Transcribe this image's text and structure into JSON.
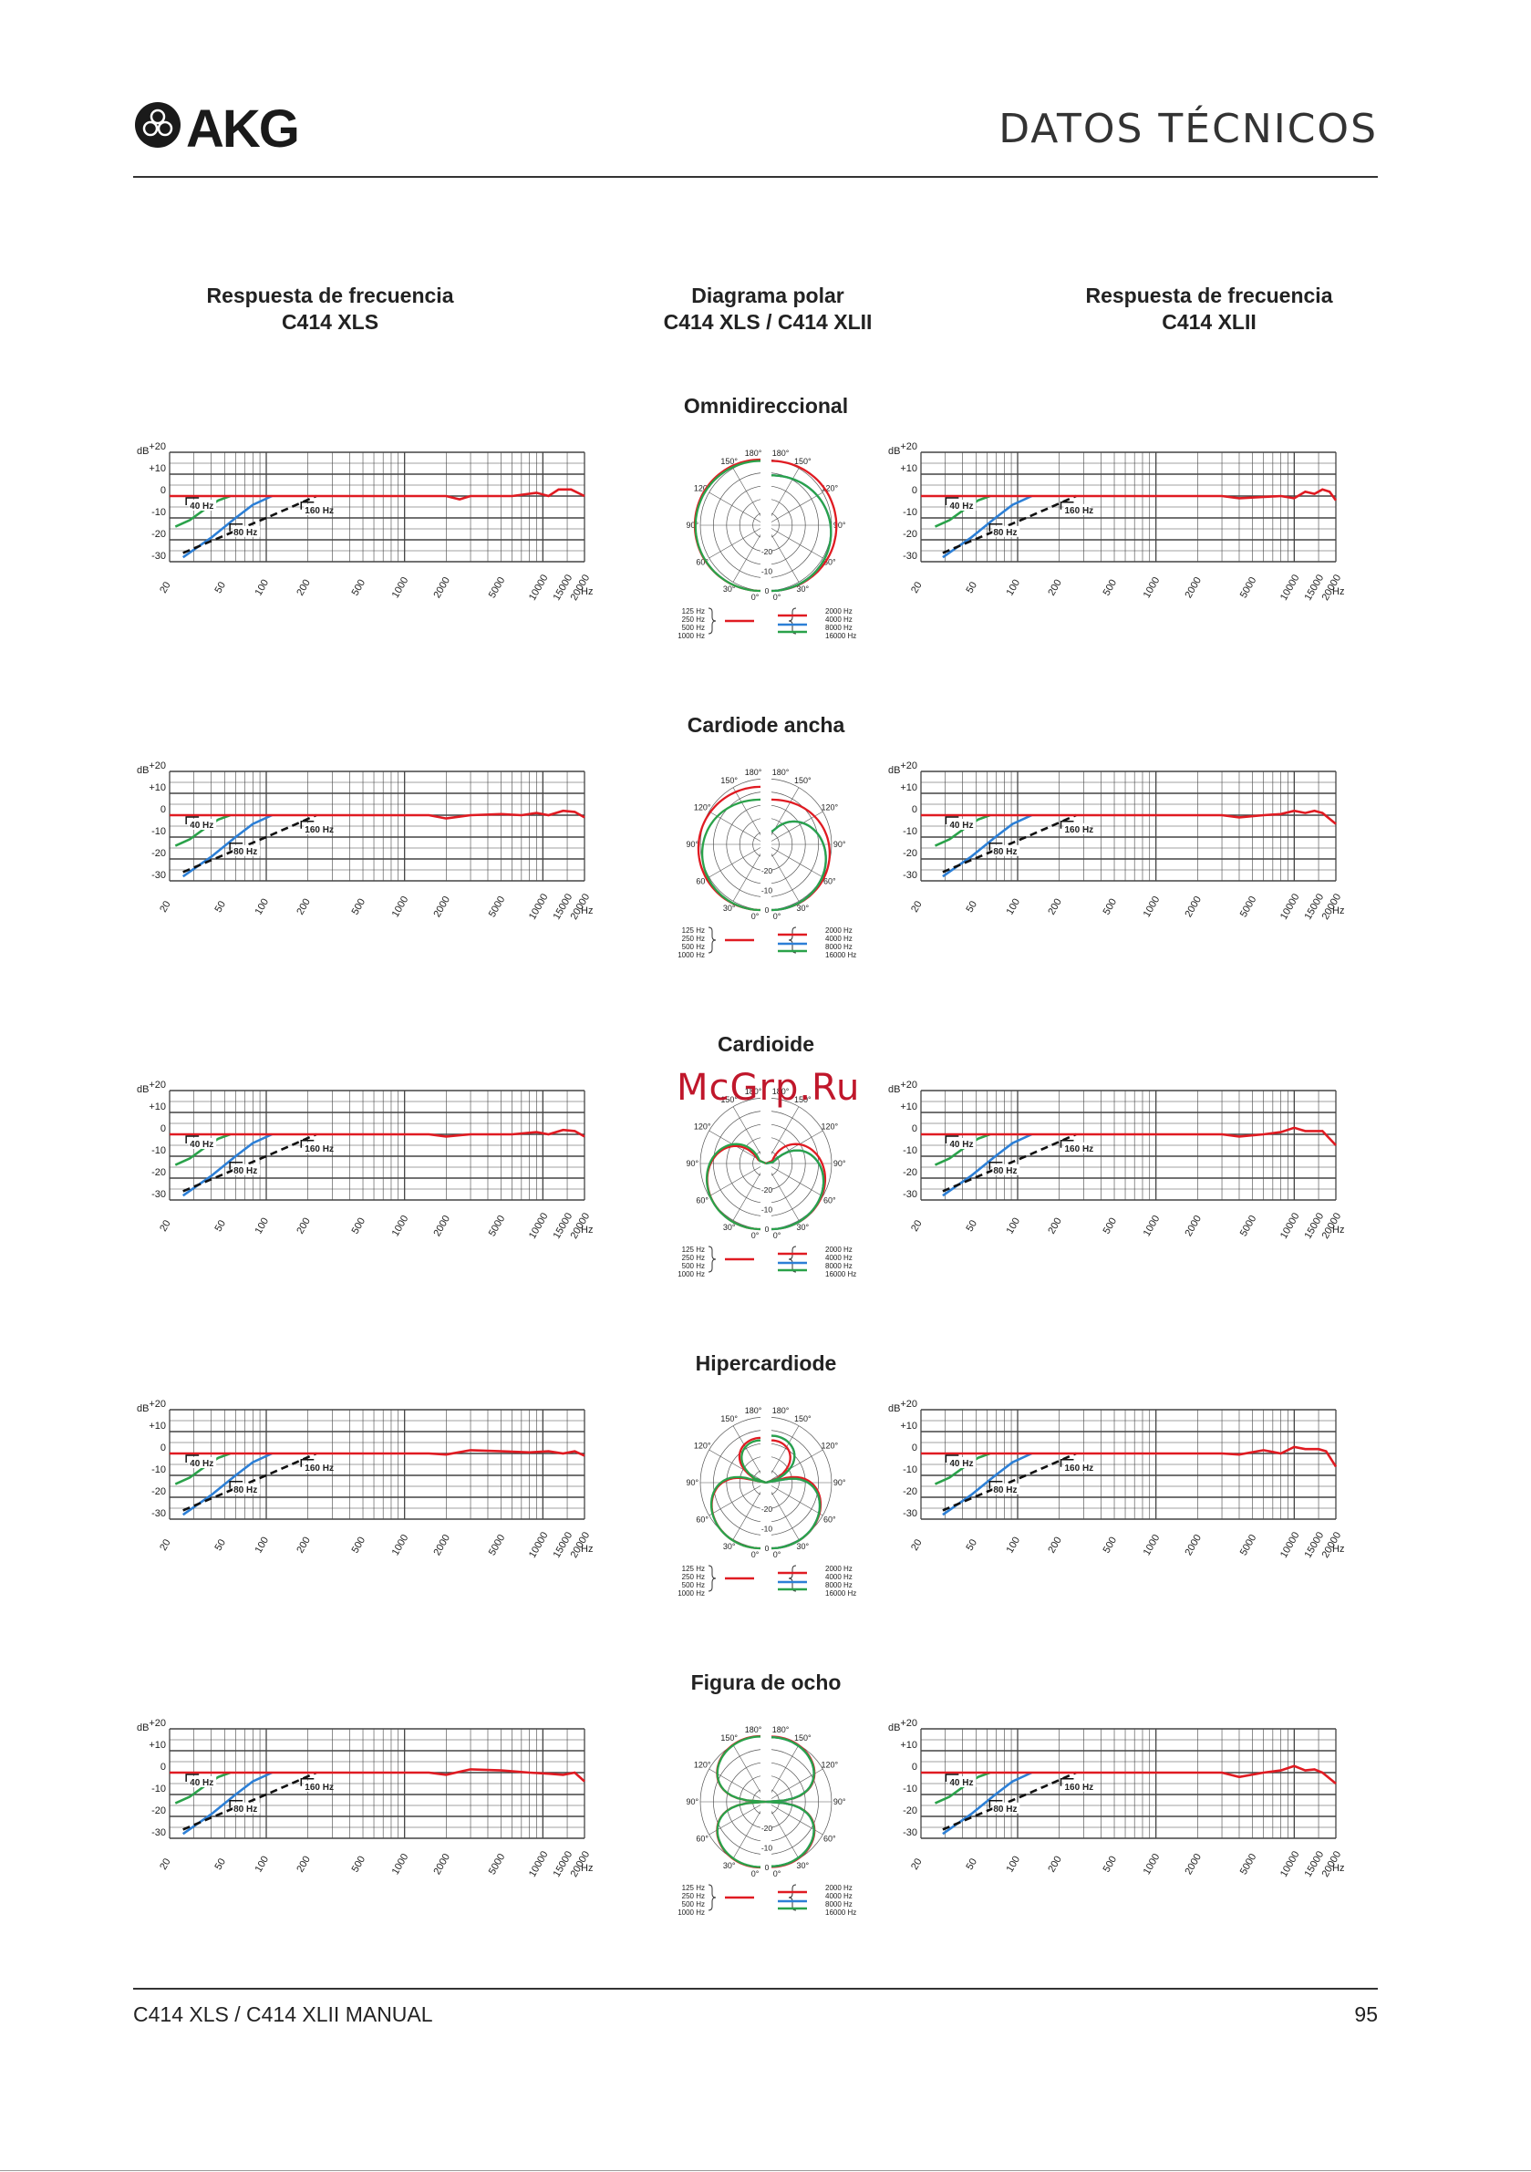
{
  "header": {
    "brand": "AKG",
    "title": "DATOS TÉCNICOS"
  },
  "columns": {
    "left": {
      "line1": "Respuesta de frecuencia",
      "line2": "C414 XLS"
    },
    "center": {
      "line1": "Diagrama polar",
      "line2": "C414 XLS / C414 XLII"
    },
    "right": {
      "line1": "Respuesta de frecuencia",
      "line2": "C414 XLII"
    }
  },
  "watermark": "McGrp.Ru",
  "footer": {
    "manual": "C414 XLS / C414 XLII MANUAL",
    "page": "95"
  },
  "axis": {
    "db_label": "dB",
    "db_ticks": [
      "+20",
      "+10",
      "0",
      "-10",
      "-20",
      "-30"
    ],
    "freq_ticks": [
      "20",
      "50",
      "100",
      "200",
      "500",
      "1000",
      "2000",
      "5000",
      "10000",
      "15000",
      "20000"
    ],
    "freq_unit": "Hz"
  },
  "polar_angles": [
    "180°",
    "150°",
    "120°",
    "90°",
    "60°",
    "30°",
    "0°"
  ],
  "polar_db": [
    "-20",
    "-10",
    "0"
  ],
  "polar_legend": {
    "left": [
      "125 Hz",
      "250 Hz",
      "500 Hz",
      "1000 Hz"
    ],
    "right": [
      "2000 Hz",
      "4000 Hz",
      "8000 Hz",
      "16000 Hz"
    ]
  },
  "filter_labels": [
    "40 Hz",
    "80 Hz",
    "160 Hz"
  ],
  "colors": {
    "red": "#e01b22",
    "blue": "#2c7fd6",
    "green": "#2aa24a",
    "black": "#111111",
    "grid": "#444444"
  },
  "patterns": [
    {
      "name": "Omnidireccional",
      "polar": "omni",
      "xls_tail": [
        [
          20,
          0
        ],
        [
          2000,
          0
        ],
        [
          2500,
          -1.5
        ],
        [
          3000,
          0
        ],
        [
          6000,
          0
        ],
        [
          9000,
          1.5
        ],
        [
          11000,
          0
        ],
        [
          13000,
          3
        ],
        [
          16000,
          3
        ],
        [
          20000,
          0
        ]
      ],
      "xlii_tail": [
        [
          20,
          0
        ],
        [
          3000,
          0
        ],
        [
          4000,
          -1
        ],
        [
          8000,
          0
        ],
        [
          10000,
          -1
        ],
        [
          12000,
          2
        ],
        [
          14000,
          1
        ],
        [
          16000,
          3
        ],
        [
          18000,
          2
        ],
        [
          20000,
          -2
        ]
      ]
    },
    {
      "name": "Cardiode ancha",
      "polar": "wide",
      "xls_tail": [
        [
          20,
          0
        ],
        [
          1500,
          0
        ],
        [
          2000,
          -1.5
        ],
        [
          3000,
          0
        ],
        [
          5000,
          0.5
        ],
        [
          7000,
          0
        ],
        [
          9000,
          1
        ],
        [
          11000,
          0
        ],
        [
          14000,
          2
        ],
        [
          17000,
          1.5
        ],
        [
          20000,
          -1
        ]
      ],
      "xlii_tail": [
        [
          20,
          0
        ],
        [
          3000,
          0
        ],
        [
          4000,
          -1
        ],
        [
          6000,
          0
        ],
        [
          8000,
          0.5
        ],
        [
          10000,
          2
        ],
        [
          12000,
          1
        ],
        [
          14000,
          2
        ],
        [
          16000,
          1
        ],
        [
          20000,
          -4
        ]
      ]
    },
    {
      "name": "Cardioide",
      "polar": "cardioid",
      "xls_tail": [
        [
          20,
          0
        ],
        [
          1500,
          0
        ],
        [
          2000,
          -1
        ],
        [
          3000,
          0
        ],
        [
          6000,
          0
        ],
        [
          9000,
          1
        ],
        [
          11000,
          0
        ],
        [
          14000,
          2
        ],
        [
          17000,
          1.5
        ],
        [
          20000,
          -1
        ]
      ],
      "xlii_tail": [
        [
          20,
          0
        ],
        [
          3000,
          0
        ],
        [
          4000,
          -1
        ],
        [
          6000,
          0
        ],
        [
          8000,
          1
        ],
        [
          10000,
          3
        ],
        [
          12000,
          1.5
        ],
        [
          16000,
          1.5
        ],
        [
          20000,
          -5
        ]
      ]
    },
    {
      "name": "Hipercardiode",
      "polar": "hyper",
      "xls_tail": [
        [
          20,
          0
        ],
        [
          1500,
          0
        ],
        [
          2000,
          -0.5
        ],
        [
          3000,
          1.5
        ],
        [
          5000,
          1
        ],
        [
          8000,
          0.5
        ],
        [
          11000,
          1
        ],
        [
          14000,
          0
        ],
        [
          17000,
          1
        ],
        [
          20000,
          -1
        ]
      ],
      "xlii_tail": [
        [
          20,
          0
        ],
        [
          3000,
          0
        ],
        [
          4000,
          -0.5
        ],
        [
          6000,
          1.5
        ],
        [
          8000,
          0
        ],
        [
          10000,
          3
        ],
        [
          12000,
          2
        ],
        [
          15000,
          2
        ],
        [
          17000,
          1
        ],
        [
          20000,
          -6
        ]
      ]
    },
    {
      "name": "Figura de ocho",
      "polar": "fig8",
      "xls_tail": [
        [
          20,
          0
        ],
        [
          1500,
          0
        ],
        [
          2000,
          -1
        ],
        [
          3000,
          1.5
        ],
        [
          5000,
          1
        ],
        [
          8000,
          0
        ],
        [
          11000,
          -0.5
        ],
        [
          14000,
          -1
        ],
        [
          17000,
          0
        ],
        [
          20000,
          -4
        ]
      ],
      "xlii_tail": [
        [
          20,
          0
        ],
        [
          3000,
          0
        ],
        [
          4000,
          -2
        ],
        [
          6000,
          0
        ],
        [
          8000,
          1
        ],
        [
          10000,
          3
        ],
        [
          12000,
          1
        ],
        [
          14000,
          1.5
        ],
        [
          16000,
          0
        ],
        [
          20000,
          -5
        ]
      ]
    }
  ]
}
